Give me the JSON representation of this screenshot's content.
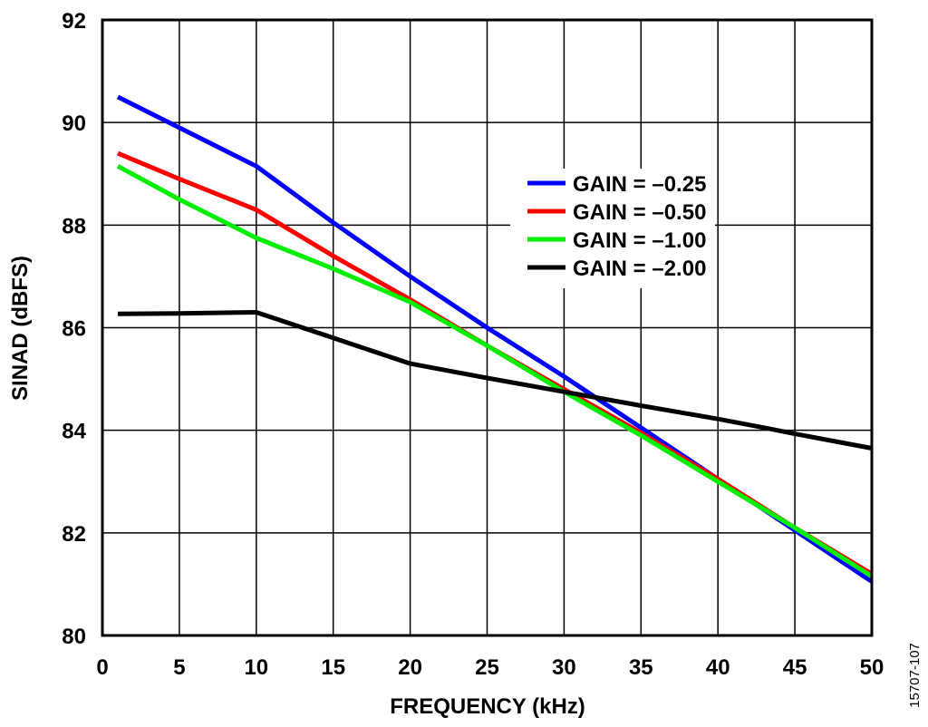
{
  "chart_data": {
    "type": "line",
    "xlabel": "FREQUENCY (kHz)",
    "ylabel": "SINAD (dBFS)",
    "xlim": [
      0,
      50
    ],
    "ylim": [
      80,
      92
    ],
    "xticks": [
      0,
      5,
      10,
      15,
      20,
      25,
      30,
      35,
      40,
      45,
      50
    ],
    "yticks": [
      80,
      82,
      84,
      86,
      88,
      90,
      92
    ],
    "grid": true,
    "legend_position": "upper-right",
    "series": [
      {
        "name": "GAIN = –0.25",
        "color": "#0000ff",
        "x": [
          1,
          10,
          15,
          20,
          25,
          30,
          35,
          40,
          45,
          50
        ],
        "y": [
          90.5,
          89.15,
          88.05,
          87.0,
          86.0,
          85.05,
          84.05,
          83.05,
          82.05,
          81.05
        ]
      },
      {
        "name": "GAIN = –0.50",
        "color": "#ff0000",
        "x": [
          1,
          5,
          10,
          15,
          20,
          25,
          30,
          35,
          40,
          45,
          50
        ],
        "y": [
          89.4,
          88.9,
          88.3,
          87.4,
          86.55,
          85.65,
          84.8,
          83.95,
          83.05,
          82.1,
          81.2
        ]
      },
      {
        "name": "GAIN = –1.00",
        "color": "#00ee00",
        "x": [
          1,
          5,
          10,
          15,
          20,
          25,
          30,
          35,
          40,
          45,
          50
        ],
        "y": [
          89.15,
          88.5,
          87.75,
          87.15,
          86.5,
          85.65,
          84.75,
          83.9,
          83.0,
          82.1,
          81.15
        ]
      },
      {
        "name": "GAIN = –2.00",
        "color": "#000000",
        "x": [
          1,
          5,
          10,
          15,
          20,
          25,
          30,
          35,
          40,
          43,
          45,
          50
        ],
        "y": [
          86.27,
          86.28,
          86.3,
          85.8,
          85.3,
          85.02,
          84.75,
          84.48,
          84.22,
          84.05,
          83.93,
          83.65
        ]
      }
    ]
  },
  "figure_id": "15707-107"
}
